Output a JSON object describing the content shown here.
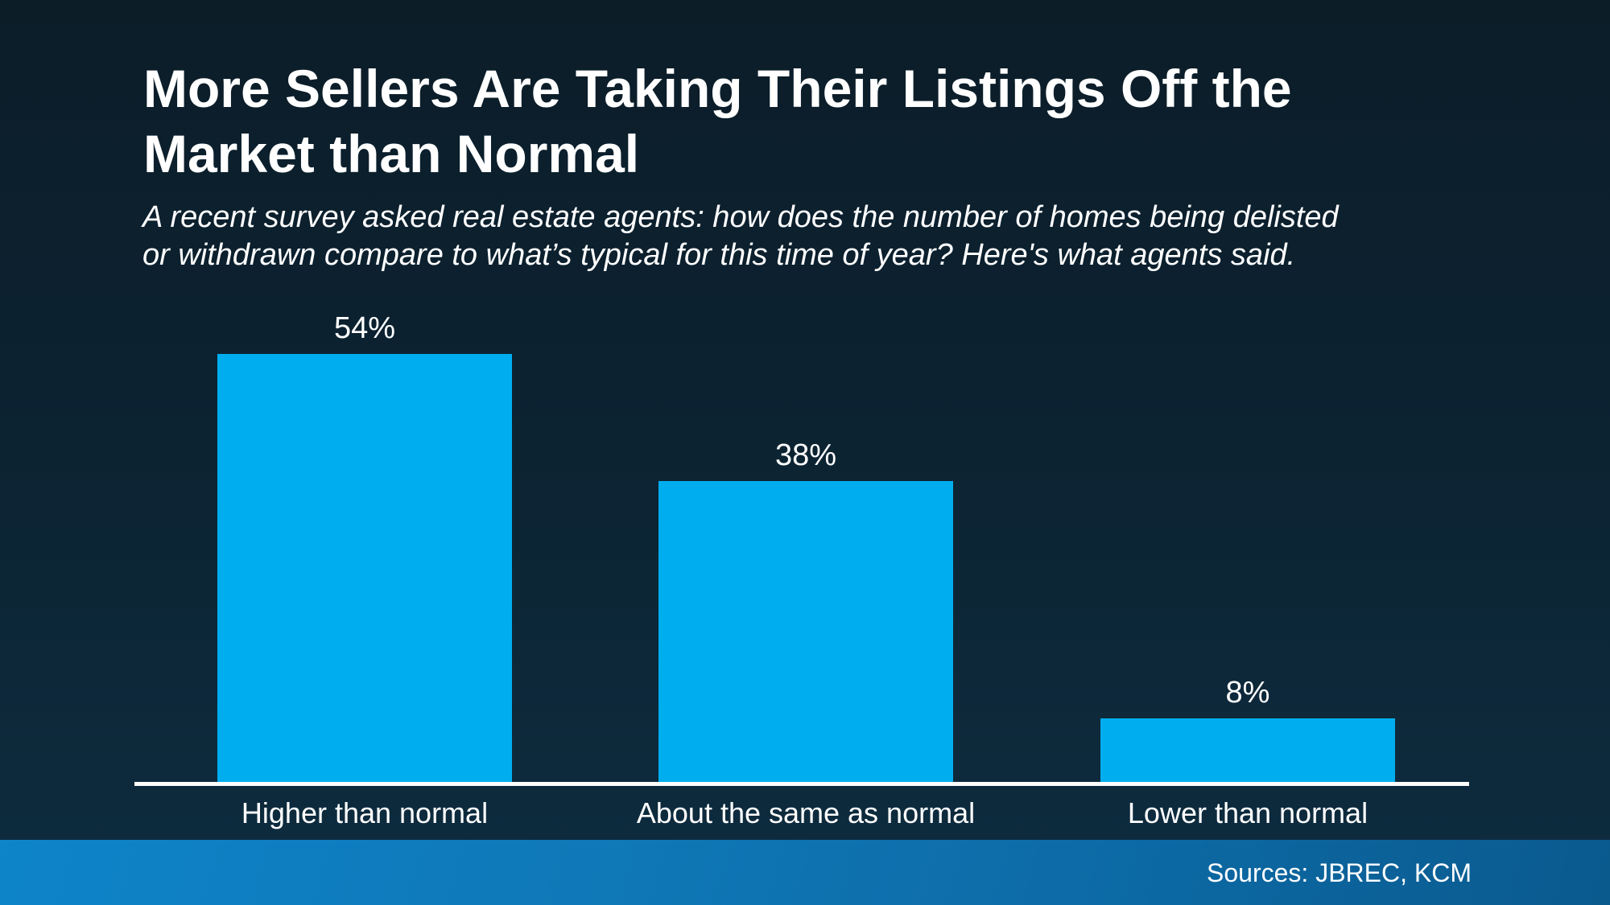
{
  "slide": {
    "title_lines": [
      "More Sellers Are Taking Their Listings Off the",
      "Market than Normal"
    ],
    "subtitle_lines": [
      "A recent survey asked real estate agents: how does the number of homes being delisted",
      "or withdrawn compare to what’s typical for this time of year? Here's what agents said."
    ],
    "footer": {
      "sources_label": "Sources: JBREC, KCM"
    }
  },
  "colors": {
    "background_top": "#0C1D28",
    "background_bottom": "#0E2C40",
    "bar": "#00AEEF",
    "axis": "#FFFFFF",
    "text": "#FFFFFF",
    "footer_gradient_left": "#0E84C9",
    "footer_gradient_right": "#0A5A8E"
  },
  "chart_data": {
    "type": "bar",
    "title": "More Sellers Are Taking Their Listings Off the Market than Normal",
    "subtitle": "A recent survey asked real estate agents: how does the number of homes being delisted or withdrawn compare to what’s typical for this time of year? Here's what agents said.",
    "categories": [
      "Higher than normal",
      "About the same as normal",
      "Lower than normal"
    ],
    "values": [
      54,
      38,
      8
    ],
    "value_labels": [
      "54%",
      "38%",
      "8%"
    ],
    "xlabel": "",
    "ylabel": "",
    "ylim": [
      0,
      60
    ],
    "grid": false,
    "legend": null,
    "bar_color": "#00AEEF",
    "annotations": [
      "Sources: JBREC, KCM"
    ]
  }
}
